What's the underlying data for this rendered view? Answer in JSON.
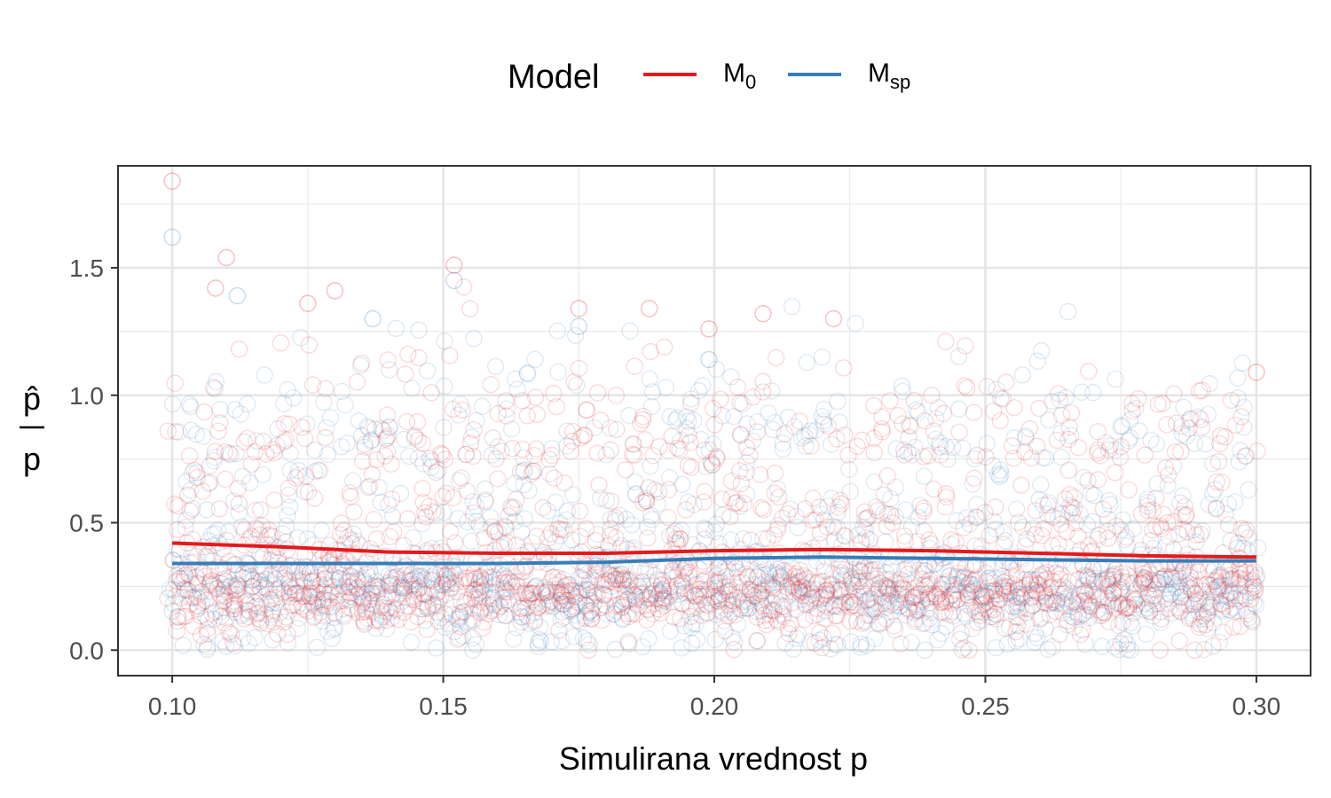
{
  "chart_data": {
    "type": "scatter",
    "title": "",
    "xlabel": "Simulirana vrednost p",
    "ylabel": {
      "numerator": "p̂",
      "denominator": "p"
    },
    "xlim": [
      0.09,
      0.31
    ],
    "ylim": [
      -0.1,
      1.9
    ],
    "x_ticks": [
      "0.10",
      "0.15",
      "0.20",
      "0.25",
      "0.30"
    ],
    "x_tick_values": [
      0.1,
      0.15,
      0.2,
      0.25,
      0.3
    ],
    "y_ticks": [
      "0.0",
      "0.5",
      "1.0",
      "1.5"
    ],
    "y_tick_values": [
      0.0,
      0.5,
      1.0,
      1.5
    ],
    "grid": true,
    "legend": {
      "title": "Model",
      "position": "top",
      "entries": [
        {
          "label": "M",
          "sub": "0",
          "color": "#e41a1c"
        },
        {
          "label": "M",
          "sub": "sp",
          "color": "#377eb8"
        }
      ]
    },
    "series": [
      {
        "name": "M0",
        "color": "#e41a1c",
        "marker": "open-circle",
        "point_count_estimate": 1500,
        "notable_points": [
          {
            "x": 0.1,
            "y": 1.84
          },
          {
            "x": 0.11,
            "y": 1.54
          },
          {
            "x": 0.108,
            "y": 1.42
          },
          {
            "x": 0.152,
            "y": 1.51
          },
          {
            "x": 0.125,
            "y": 1.36
          },
          {
            "x": 0.13,
            "y": 1.41
          },
          {
            "x": 0.175,
            "y": 1.34
          },
          {
            "x": 0.188,
            "y": 1.34
          },
          {
            "x": 0.209,
            "y": 1.32
          },
          {
            "x": 0.222,
            "y": 1.3
          },
          {
            "x": 0.199,
            "y": 1.26
          },
          {
            "x": 0.3,
            "y": 1.09
          }
        ],
        "smooth": {
          "x": [
            0.1,
            0.12,
            0.14,
            0.16,
            0.18,
            0.2,
            0.22,
            0.24,
            0.26,
            0.28,
            0.3
          ],
          "y": [
            0.42,
            0.405,
            0.385,
            0.38,
            0.38,
            0.39,
            0.395,
            0.39,
            0.38,
            0.37,
            0.365
          ]
        }
      },
      {
        "name": "Msp",
        "color": "#377eb8",
        "marker": "open-circle",
        "point_count_estimate": 1500,
        "notable_points": [
          {
            "x": 0.1,
            "y": 1.62
          },
          {
            "x": 0.152,
            "y": 1.45
          },
          {
            "x": 0.112,
            "y": 1.39
          },
          {
            "x": 0.137,
            "y": 1.3
          },
          {
            "x": 0.175,
            "y": 1.27
          },
          {
            "x": 0.199,
            "y": 1.14
          }
        ],
        "smooth": {
          "x": [
            0.1,
            0.12,
            0.14,
            0.16,
            0.18,
            0.2,
            0.22,
            0.24,
            0.26,
            0.28,
            0.3
          ],
          "y": [
            0.34,
            0.34,
            0.34,
            0.34,
            0.345,
            0.36,
            0.365,
            0.36,
            0.355,
            0.35,
            0.35
          ]
        }
      }
    ]
  }
}
